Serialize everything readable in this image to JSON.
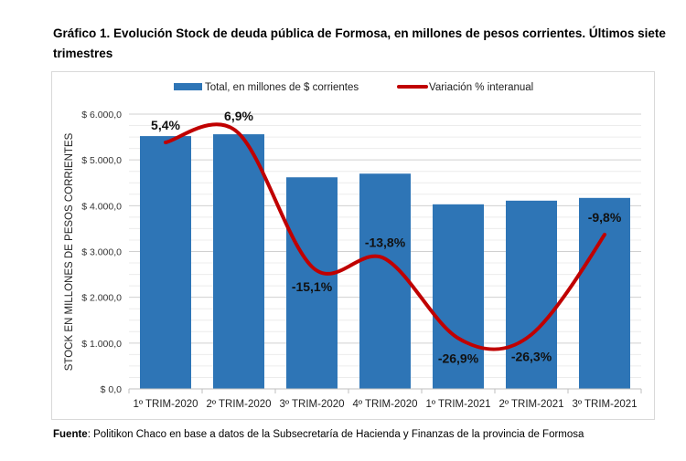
{
  "title": "Gráfico 1. Evolución Stock de deuda pública de Formosa, en millones de pesos corrientes. Últimos siete trimestres",
  "source": {
    "label": "Fuente",
    "text": ": Politikon Chaco en base a datos de la Subsecretaría de Hacienda y Finanzas de la provincia de Formosa"
  },
  "chart_data": {
    "type": "bar+line",
    "title": "Gráfico 1. Evolución Stock de deuda pública de Formosa, en millones de pesos corrientes. Últimos siete trimestres",
    "ylabel": "STOCK EN MILLONES DE PESOS CORRIENTES",
    "xlabel": "",
    "ylim": [
      0,
      6000
    ],
    "yticks": [
      0,
      1000,
      2000,
      3000,
      4000,
      5000,
      6000
    ],
    "ytick_labels": [
      "$ 0,0",
      "$ 1.000,0",
      "$ 2.000,0",
      "$ 3.000,0",
      "$ 4.000,0",
      "$ 5.000,0",
      "$ 6.000,0"
    ],
    "grid": true,
    "legend_position": "top",
    "categories": [
      "1º TRIM-2020",
      "2º TRIM-2020",
      "3º TRIM-2020",
      "4º TRIM-2020",
      "1º TRIM-2021",
      "2º TRIM-2021",
      "3º TRIM-2021"
    ],
    "series": [
      {
        "name": "Total, en millones de $ corrientes",
        "type": "bar",
        "color": "#2e75b6",
        "values": [
          5520,
          5560,
          4620,
          4700,
          4030,
          4110,
          4170
        ]
      },
      {
        "name": "Variación % interanual",
        "type": "line",
        "color": "#c00000",
        "smooth": true,
        "axis": "secondary (hidden)",
        "values": [
          5.4,
          6.9,
          -15.1,
          -13.8,
          -26.9,
          -26.3,
          -9.8
        ],
        "labels": [
          "5,4%",
          "6,9%",
          "-15,1%",
          "-13,8%",
          "-26,9%",
          "-26,3%",
          "-9,8%"
        ]
      }
    ]
  }
}
